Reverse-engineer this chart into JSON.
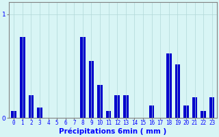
{
  "categories": [
    0,
    1,
    2,
    3,
    4,
    5,
    6,
    7,
    8,
    9,
    10,
    11,
    12,
    13,
    14,
    15,
    16,
    17,
    18,
    19,
    20,
    21,
    22,
    23
  ],
  "values": [
    0.07,
    0.78,
    0.22,
    0.1,
    0.0,
    0.0,
    0.0,
    0.0,
    0.78,
    0.55,
    0.32,
    0.07,
    0.22,
    0.22,
    0.0,
    0.0,
    0.12,
    0.0,
    0.62,
    0.52,
    0.12,
    0.2,
    0.07,
    0.2
  ],
  "bar_color": "#0000cc",
  "background_color": "#d8f5f5",
  "grid_color": "#b0d8d8",
  "xlabel": "Précipitations 6min ( mm )",
  "yticks": [
    0,
    1
  ],
  "ylim": [
    0,
    1.12
  ],
  "xlim": [
    -0.6,
    23.6
  ],
  "tick_fontsize": 5.5,
  "xlabel_fontsize": 7.5
}
